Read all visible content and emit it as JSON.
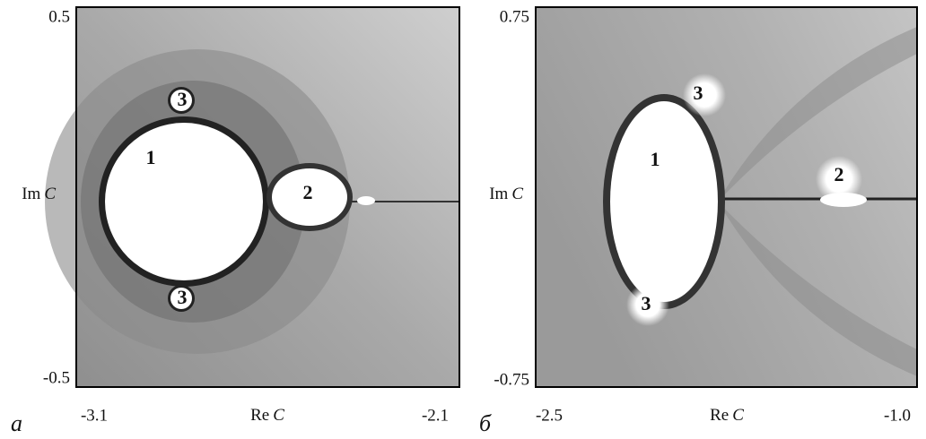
{
  "panels": [
    {
      "letter": "a",
      "y_top": "0.5",
      "y_bottom": "-0.5",
      "y_name": "Im",
      "y_var": "C",
      "x_left": "-3.1",
      "x_right": "-2.1",
      "x_name": "Re",
      "x_var": "C",
      "regions": [
        "1",
        "2",
        "3",
        "3"
      ]
    },
    {
      "letter": "б",
      "y_top": "0.75",
      "y_bottom": "-0.75",
      "y_name": "Im",
      "y_var": "C",
      "x_left": "-2.5",
      "x_right": "-1.0",
      "x_name": "Re",
      "x_var": "C",
      "regions": [
        "1",
        "2",
        "3",
        "3"
      ]
    }
  ]
}
